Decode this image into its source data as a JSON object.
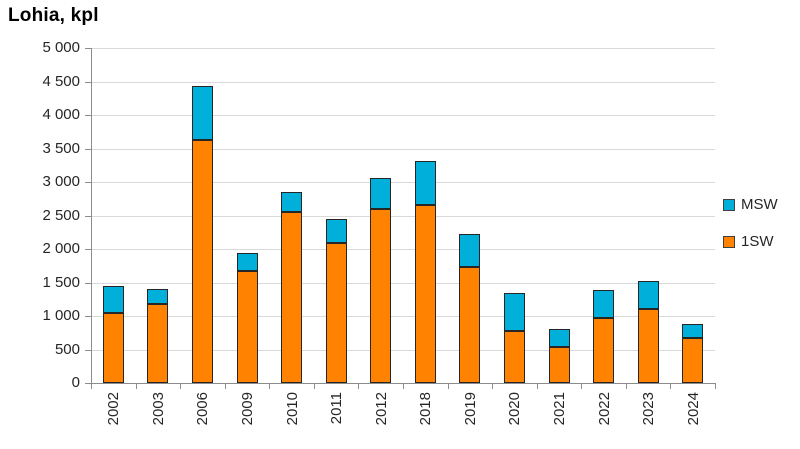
{
  "title": "Lohia, kpl",
  "legend": {
    "position": "right",
    "items": [
      {
        "label": "MSW",
        "color": "#00b0db"
      },
      {
        "label": "1SW",
        "color": "#ff8200"
      }
    ]
  },
  "chart_data": {
    "type": "bar",
    "stacked": true,
    "title": "Lohia, kpl",
    "xlabel": "",
    "ylabel": "Lohia, kpl",
    "ylim": [
      0,
      5000
    ],
    "ytick_step": 500,
    "ytick_labels": [
      "0",
      "500",
      "1 000",
      "1 500",
      "2 000",
      "2 500",
      "3 000",
      "3 500",
      "4 000",
      "4 500",
      "5 000"
    ],
    "grid": true,
    "legend_position": "right",
    "categories": [
      "2002",
      "2003",
      "2006",
      "2009",
      "2010",
      "2011",
      "2012",
      "2018",
      "2019",
      "2020",
      "2021",
      "2022",
      "2023",
      "2024"
    ],
    "series": [
      {
        "name": "1SW",
        "color": "#ff8200",
        "values": [
          1050,
          1185,
          3620,
          1670,
          2545,
          2085,
          2590,
          2650,
          1730,
          770,
          530,
          975,
          1110,
          665
        ]
      },
      {
        "name": "MSW",
        "color": "#00b0db",
        "values": [
          410,
          225,
          810,
          270,
          300,
          365,
          470,
          650,
          490,
          560,
          270,
          415,
          420,
          210
        ]
      }
    ],
    "totals": [
      1460,
      1410,
      4430,
      1940,
      2845,
      2450,
      3060,
      3300,
      2220,
      1330,
      800,
      1390,
      1530,
      875
    ]
  },
  "colors": {
    "gridline": "#d9d9d9",
    "axis": "#8c8c8c",
    "bar_border": "#262626",
    "text": "#262626"
  }
}
